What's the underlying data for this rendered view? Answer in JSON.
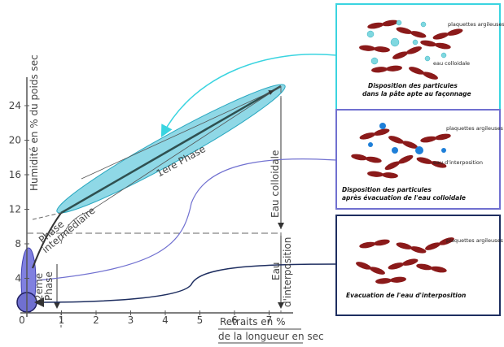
{
  "axes": {
    "y_label": "Humidité en % du poids sec",
    "x_label": [
      "Retraits en %",
      "de la longueur en sec"
    ],
    "y_ticks": [
      "4",
      "8",
      "12",
      "16",
      "20",
      "24"
    ],
    "x_ticks": [
      "0",
      "1",
      "2",
      "3",
      "4",
      "5",
      "6",
      "7"
    ]
  },
  "annotations": {
    "phase1": "1ere Phase",
    "phase_mid": [
      "Phase",
      "intermédiaire"
    ],
    "phase2": [
      "2eme",
      "Phase"
    ],
    "eau_colloidale": "Eau colloidale",
    "eau_interposition": [
      "Eau",
      "d'interposition"
    ]
  },
  "panels": [
    {
      "labels": [
        "plaquettes argileuses",
        "eau colloidale"
      ],
      "caption": [
        "Disposition des particules",
        "dans la pâte apte au façonnage"
      ]
    },
    {
      "labels": [
        "plaquettes argileuses",
        "eau d'interposition"
      ],
      "caption": [
        "Disposition des particules",
        "après évacuation de l'eau colloidale"
      ]
    },
    {
      "labels": [
        "plaquettes argileuses"
      ],
      "caption": [
        "Evacuation de l'eau d'interposition"
      ]
    }
  ]
}
